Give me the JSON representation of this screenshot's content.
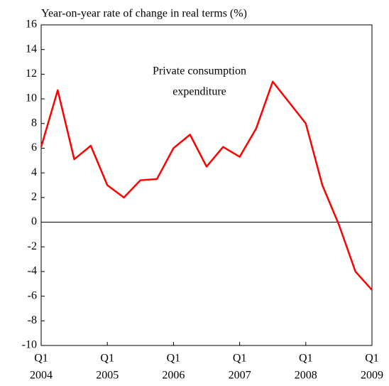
{
  "chart_data": {
    "type": "line",
    "title": "Year-on-year rate of change in real terms (%)",
    "annotation": [
      "Private consumption",
      "expenditure"
    ],
    "categories": [
      "Q1",
      null,
      null,
      null,
      "Q1",
      null,
      null,
      null,
      "Q1",
      null,
      null,
      null,
      "Q1",
      null,
      null,
      null,
      "Q1",
      null,
      null,
      null,
      "Q1"
    ],
    "category_years": [
      "2004",
      null,
      null,
      null,
      "2005",
      null,
      null,
      null,
      "2006",
      null,
      null,
      null,
      "2007",
      null,
      null,
      null,
      "2008",
      null,
      null,
      null,
      "2009"
    ],
    "series": [
      {
        "name": "Private consumption expenditure",
        "color": "#ff0000",
        "values": [
          6.1,
          10.7,
          5.1,
          6.2,
          3.0,
          2.0,
          3.4,
          3.5,
          6.0,
          7.1,
          4.5,
          6.1,
          5.3,
          7.6,
          11.4,
          9.7,
          8.0,
          3.0,
          -0.2,
          -4.0,
          -5.5
        ]
      }
    ],
    "ylim": [
      -10,
      16
    ],
    "yticks": [
      -10,
      -8,
      -6,
      -4,
      -2,
      0,
      2,
      4,
      6,
      8,
      10,
      12,
      14,
      16
    ],
    "zero_line": true
  }
}
